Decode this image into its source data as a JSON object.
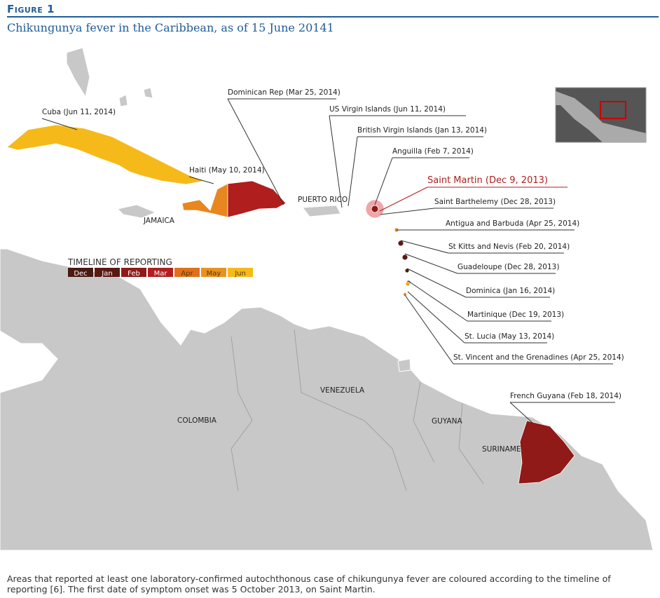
{
  "header": {
    "figure_label": "Figure 1",
    "title": "Chikungunya fever in the Caribbean, as of 15 June 20141"
  },
  "map_labels": [
    "JAMAICA",
    "PUERTO RICO",
    "COLOMBIA",
    "VENEZUELA",
    "GUYANA",
    "SURINAME"
  ],
  "callouts": [
    "Cuba (Jun 11, 2014)",
    "Haiti (May 10, 2014)",
    "Dominican Rep (Mar 25, 2014)",
    "US Virgin Islands (Jun 11, 2014)",
    "British Virgin Islands (Jan 13, 2014)",
    "Anguilla (Feb 7, 2014)",
    "Saint Martin (Dec 9, 2013)",
    "Saint Barthelemy (Dec 28, 2013)",
    "Antigua and Barbuda (Apr 25, 2014)",
    "St Kitts and Nevis (Feb 20, 2014)",
    "Guadeloupe (Dec 28, 2013)",
    "Dominica (Jan 16, 2014)",
    "Martinique (Dec 19, 2013)",
    "St. Lucia (May 13, 2014)",
    "St. Vincent and the Grenadines (Apr 25, 2014)",
    "French Guyana (Feb 18, 2014)"
  ],
  "legend": {
    "title": "TIMELINE OF REPORTING",
    "items": [
      {
        "label": "Dec",
        "color": "#4a1a10"
      },
      {
        "label": "Jan",
        "color": "#5a1a12"
      },
      {
        "label": "Feb",
        "color": "#8f1a17"
      },
      {
        "label": "Mar",
        "color": "#b01e1e"
      },
      {
        "label": "Apr",
        "color": "#e0701a"
      },
      {
        "label": "May",
        "color": "#e8921f"
      },
      {
        "label": "Jun",
        "color": "#f5b919"
      }
    ]
  },
  "caption": "Areas that reported at least one laboratory-confirmed autochthonous case of chikungunya fever are coloured according to the timeline of reporting [6]. The first date of symptom onset was 5 October 2013, on Saint Martin."
}
